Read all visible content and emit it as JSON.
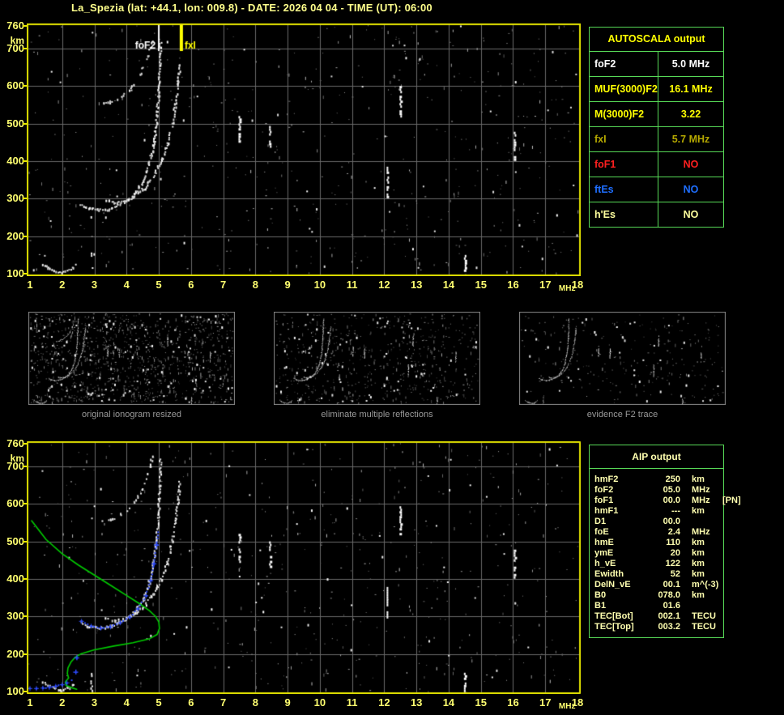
{
  "title": "La_Spezia (lat: +44.1, lon: 009.8) - DATE: 2026 04 04 - TIME (UT): 06:00",
  "colors": {
    "plot_border": "#e0e000",
    "axis_label": "#ffff70",
    "grid": "#6a6a6a",
    "table_border": "#57d957",
    "profile_green": "#00cc00",
    "restored_blue": "#2d4bff",
    "trace_white": "#ffffff",
    "caption_grey": "#9a9a9a",
    "marker_foF2": "#ffffff",
    "marker_fxI": "#ffff00"
  },
  "autoscala_table": {
    "header": "AUTOSCALA output",
    "rows": [
      {
        "label": "foF2",
        "value": "5.0 MHz",
        "color": "#ffffff"
      },
      {
        "label": "MUF(3000)F2",
        "value": "16.1 MHz",
        "color": "#ffff00"
      },
      {
        "label": "M(3000)F2",
        "value": "3.22",
        "color": "#ffff00"
      },
      {
        "label": "fxI",
        "value": "5.7 MHz",
        "color": "#b5a800"
      },
      {
        "label": "foF1",
        "value": "NO",
        "color": "#ff2020"
      },
      {
        "label": "ftEs",
        "value": "NO",
        "color": "#1f6fff"
      },
      {
        "label": "h'Es",
        "value": "NO",
        "color": "#ffff9e"
      }
    ]
  },
  "aip_table": {
    "header": "AIP output",
    "rows": [
      {
        "label": "hmF2",
        "value": "250",
        "unit": "km",
        "extra": ""
      },
      {
        "label": "foF2",
        "value": "05.0",
        "unit": "MHz",
        "extra": ""
      },
      {
        "label": "foF1",
        "value": "00.0",
        "unit": "MHz",
        "extra": "[PN]"
      },
      {
        "label": "hmF1",
        "value": "---",
        "unit": "km",
        "extra": ""
      },
      {
        "label": "D1",
        "value": "00.0",
        "unit": "",
        "extra": ""
      },
      {
        "label": "foE",
        "value": "2.4",
        "unit": "MHz",
        "extra": ""
      },
      {
        "label": "hmE",
        "value": "110",
        "unit": "km",
        "extra": ""
      },
      {
        "label": "ymE",
        "value": "20",
        "unit": "km",
        "extra": ""
      },
      {
        "label": "h_vE",
        "value": "122",
        "unit": "km",
        "extra": ""
      },
      {
        "label": "Ewidth",
        "value": "52",
        "unit": "km",
        "extra": ""
      },
      {
        "label": "DelN_vE",
        "value": "00.1",
        "unit": "m^(-3)",
        "extra": ""
      },
      {
        "label": "B0",
        "value": "078.0",
        "unit": "km",
        "extra": ""
      },
      {
        "label": "B1",
        "value": "01.6",
        "unit": "",
        "extra": ""
      },
      {
        "label": "TEC[Bot]",
        "value": "002.1",
        "unit": "TECU",
        "extra": ""
      },
      {
        "label": "TEC[Top]",
        "value": "003.2",
        "unit": "TECU",
        "extra": ""
      }
    ]
  },
  "panels": [
    {
      "caption": "original ionogram resized"
    },
    {
      "caption": "eliminate multiple reflections"
    },
    {
      "caption": "evidence F2 trace"
    }
  ],
  "axes": {
    "x_ticks": [
      1,
      2,
      3,
      4,
      5,
      6,
      7,
      8,
      9,
      10,
      11,
      12,
      13,
      14,
      15,
      16,
      17,
      18
    ],
    "x_unit": "MHz",
    "y_ticks": [
      760,
      700,
      600,
      500,
      400,
      300,
      200,
      100
    ],
    "y_unit": "km",
    "x_range": [
      1,
      18
    ],
    "y_range": [
      100,
      760
    ]
  },
  "markers": {
    "foF2": {
      "label": "foF2",
      "freq": 5.0
    },
    "fxI": {
      "label": "fxI",
      "freq": 5.7
    }
  },
  "chart_data": {
    "type": "scatter",
    "xlabel": "MHz",
    "ylabel": "km",
    "xlim": [
      1,
      18
    ],
    "ylim": [
      100,
      760
    ],
    "traces": {
      "e_region": [
        [
          1.4,
          128
        ],
        [
          1.55,
          118
        ],
        [
          1.75,
          110
        ],
        [
          1.95,
          106
        ],
        [
          2.15,
          110
        ],
        [
          2.3,
          118
        ],
        [
          2.4,
          127
        ]
      ],
      "e_streak": [
        [
          2.9,
          100
        ],
        [
          2.9,
          165
        ]
      ],
      "o_trace": [
        [
          2.55,
          287
        ],
        [
          2.8,
          276
        ],
        [
          3.1,
          271
        ],
        [
          3.4,
          274
        ],
        [
          3.7,
          283
        ],
        [
          4.0,
          297
        ],
        [
          4.25,
          317
        ],
        [
          4.5,
          350
        ],
        [
          4.68,
          392
        ],
        [
          4.82,
          445
        ],
        [
          4.91,
          505
        ],
        [
          4.97,
          575
        ],
        [
          5.01,
          650
        ],
        [
          5.03,
          720
        ]
      ],
      "x_trace": [
        [
          3.35,
          297
        ],
        [
          3.6,
          291
        ],
        [
          3.9,
          294
        ],
        [
          4.2,
          306
        ],
        [
          4.5,
          327
        ],
        [
          4.8,
          360
        ],
        [
          5.05,
          400
        ],
        [
          5.25,
          447
        ],
        [
          5.4,
          500
        ],
        [
          5.5,
          556
        ],
        [
          5.58,
          615
        ],
        [
          5.63,
          660
        ]
      ],
      "second_hop": [
        [
          3.2,
          552
        ],
        [
          3.5,
          560
        ],
        [
          3.8,
          573
        ],
        [
          4.1,
          593
        ],
        [
          4.35,
          622
        ],
        [
          4.55,
          658
        ],
        [
          4.7,
          698
        ],
        [
          4.78,
          730
        ]
      ],
      "interference_streaks": [
        [
          7.5,
          445,
          520
        ],
        [
          8.45,
          432,
          500
        ],
        [
          12.1,
          300,
          385
        ],
        [
          12.5,
          520,
          600
        ],
        [
          14.5,
          85,
          150
        ],
        [
          16.05,
          405,
          478
        ]
      ],
      "profile_green": [
        [
          1.05,
          555
        ],
        [
          1.5,
          505
        ],
        [
          2.0,
          467
        ],
        [
          2.5,
          437
        ],
        [
          3.0,
          410
        ],
        [
          3.5,
          383
        ],
        [
          4.0,
          356
        ],
        [
          4.4,
          334
        ],
        [
          4.7,
          316
        ],
        [
          4.9,
          300
        ],
        [
          5.0,
          285
        ],
        [
          5.02,
          268
        ],
        [
          4.95,
          252
        ],
        [
          4.7,
          240
        ],
        [
          4.2,
          230
        ],
        [
          3.6,
          221
        ],
        [
          3.0,
          211
        ],
        [
          2.6,
          201
        ],
        [
          2.4,
          191
        ],
        [
          2.27,
          178
        ],
        [
          2.18,
          163
        ],
        [
          2.16,
          148
        ],
        [
          2.2,
          136
        ],
        [
          2.1,
          126
        ],
        [
          2.12,
          116
        ],
        [
          2.3,
          110
        ],
        [
          2.45,
          106
        ]
      ],
      "restored_blue": [
        [
          2.6,
          287
        ],
        [
          2.9,
          274
        ],
        [
          3.2,
          269
        ],
        [
          3.5,
          272
        ],
        [
          3.8,
          283
        ],
        [
          4.1,
          298
        ],
        [
          4.35,
          320
        ],
        [
          4.6,
          355
        ],
        [
          4.75,
          395
        ],
        [
          4.85,
          440
        ],
        [
          4.93,
          490
        ],
        [
          4.98,
          525
        ]
      ],
      "blue_e": [
        [
          1.0,
          108
        ],
        [
          1.2,
          108
        ],
        [
          1.4,
          109
        ],
        [
          1.6,
          111
        ],
        [
          1.8,
          114
        ],
        [
          2.0,
          118
        ],
        [
          2.15,
          123
        ],
        [
          2.3,
          130
        ]
      ],
      "blue_stray": [
        [
          2.45,
          190
        ],
        [
          2.42,
          152
        ]
      ]
    }
  }
}
